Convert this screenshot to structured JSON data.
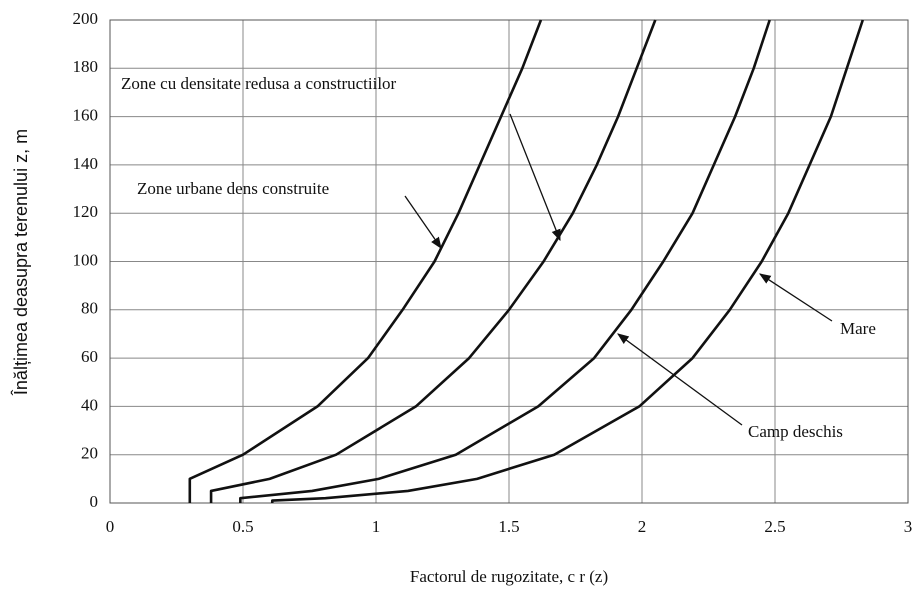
{
  "chart_data": {
    "type": "line",
    "xlabel": "Factorul de rugozitate, c r (z)",
    "ylabel": "Înălțimea deasupra terenului z, m",
    "xlim": [
      0,
      3
    ],
    "xticks": [
      0,
      0.5,
      1,
      1.5,
      2,
      2.5,
      3
    ],
    "ylim": [
      0,
      200
    ],
    "yticks": [
      0,
      20,
      40,
      60,
      80,
      100,
      120,
      140,
      160,
      180,
      200
    ],
    "grid": true,
    "color": "#111111",
    "series": [
      {
        "name": "Zone urbane dens construite",
        "x": [
          0.3,
          0.3,
          0.5,
          0.78,
          0.97,
          1.1,
          1.22,
          1.31,
          1.39,
          1.47,
          1.55,
          1.62
        ],
        "values": [
          0,
          10,
          20,
          40,
          60,
          80,
          100,
          120,
          140,
          160,
          180,
          200
        ]
      },
      {
        "name": "Zone cu densitate redusa a constructiilor",
        "x": [
          0.38,
          0.38,
          0.6,
          0.85,
          1.15,
          1.35,
          1.5,
          1.63,
          1.74,
          1.83,
          1.91,
          1.98,
          2.05
        ],
        "values": [
          0,
          5,
          10,
          20,
          40,
          60,
          80,
          100,
          120,
          140,
          160,
          180,
          200
        ]
      },
      {
        "name": "Camp deschis",
        "x": [
          0.49,
          0.49,
          0.76,
          1.01,
          1.3,
          1.61,
          1.82,
          1.96,
          2.08,
          2.19,
          2.27,
          2.35,
          2.42,
          2.48
        ],
        "values": [
          0,
          2,
          5,
          10,
          20,
          40,
          60,
          80,
          100,
          120,
          140,
          160,
          180,
          200
        ]
      },
      {
        "name": "Mare",
        "x": [
          0.61,
          0.61,
          0.81,
          1.12,
          1.38,
          1.67,
          1.99,
          2.19,
          2.33,
          2.45,
          2.55,
          2.63,
          2.71,
          2.77,
          2.83
        ],
        "values": [
          0,
          1,
          2,
          5,
          10,
          20,
          40,
          60,
          80,
          100,
          120,
          140,
          160,
          180,
          200
        ]
      }
    ]
  }
}
